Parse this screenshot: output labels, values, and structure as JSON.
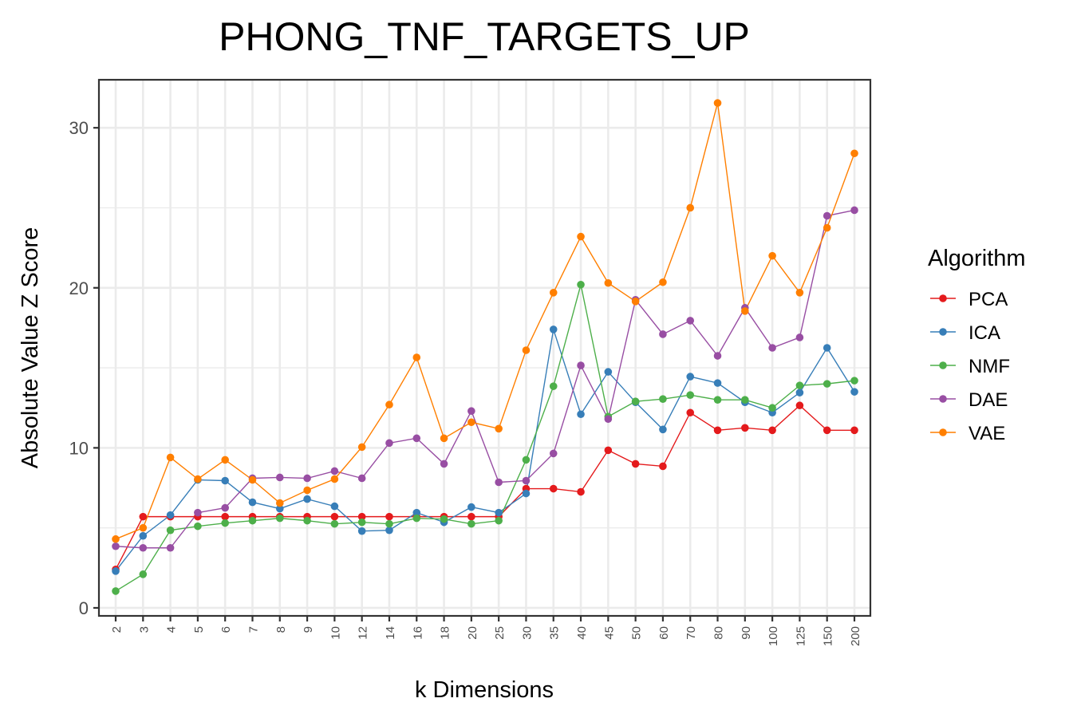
{
  "chart_data": {
    "type": "line",
    "title": "PHONG_TNF_TARGETS_UP",
    "xlabel": "k Dimensions",
    "ylabel": "Absolute Value Z Score",
    "categories": [
      "2",
      "3",
      "4",
      "5",
      "6",
      "7",
      "8",
      "9",
      "10",
      "12",
      "14",
      "16",
      "18",
      "20",
      "25",
      "30",
      "35",
      "40",
      "45",
      "50",
      "60",
      "70",
      "80",
      "90",
      "100",
      "125",
      "150",
      "200"
    ],
    "ylim": [
      -0.5,
      33
    ],
    "yticks": [
      0,
      10,
      20,
      30
    ],
    "yticks_labels": [
      "0",
      "10",
      "20",
      "30"
    ],
    "grid": true,
    "legend": {
      "title": "Algorithm",
      "position": "right"
    },
    "series": [
      {
        "name": "PCA",
        "color": "#e41a1c",
        "values": [
          2.4,
          5.7,
          5.7,
          5.7,
          5.7,
          5.7,
          5.7,
          5.7,
          5.7,
          5.7,
          5.7,
          5.7,
          5.7,
          5.7,
          5.7,
          7.45,
          7.45,
          7.25,
          9.85,
          9.0,
          8.85,
          12.2,
          11.1,
          11.25,
          11.1,
          12.65,
          11.1,
          11.1
        ]
      },
      {
        "name": "ICA",
        "color": "#377eb8",
        "values": [
          2.3,
          4.5,
          5.8,
          8.0,
          7.95,
          6.6,
          6.2,
          6.8,
          6.35,
          4.8,
          4.85,
          5.95,
          5.35,
          6.3,
          5.95,
          7.15,
          17.4,
          12.1,
          14.75,
          12.85,
          11.15,
          14.45,
          14.05,
          12.85,
          12.2,
          13.45,
          16.25,
          13.5
        ]
      },
      {
        "name": "NMF",
        "color": "#4daf4a",
        "values": [
          1.05,
          2.1,
          4.85,
          5.1,
          5.3,
          5.45,
          5.6,
          5.45,
          5.25,
          5.35,
          5.25,
          5.6,
          5.55,
          5.25,
          5.45,
          9.25,
          13.85,
          20.2,
          11.95,
          12.9,
          13.05,
          13.3,
          13.0,
          13.0,
          12.5,
          13.9,
          14.0,
          14.2
        ]
      },
      {
        "name": "DAE",
        "color": "#984ea3",
        "values": [
          3.85,
          3.75,
          3.75,
          5.95,
          6.25,
          8.1,
          8.15,
          8.1,
          8.55,
          8.1,
          10.3,
          10.6,
          9.0,
          12.3,
          7.85,
          7.95,
          9.65,
          15.15,
          11.8,
          19.25,
          17.1,
          17.95,
          15.75,
          18.75,
          16.25,
          16.9,
          24.5,
          24.85
        ]
      },
      {
        "name": "VAE",
        "color": "#ff7f00",
        "values": [
          4.3,
          5.0,
          9.4,
          8.05,
          9.25,
          8.0,
          6.55,
          7.35,
          8.05,
          10.05,
          12.7,
          15.65,
          10.6,
          11.6,
          11.2,
          16.1,
          19.7,
          23.2,
          20.3,
          19.15,
          20.35,
          25.0,
          31.55,
          18.55,
          22.0,
          19.7,
          23.75,
          28.4
        ]
      }
    ]
  }
}
